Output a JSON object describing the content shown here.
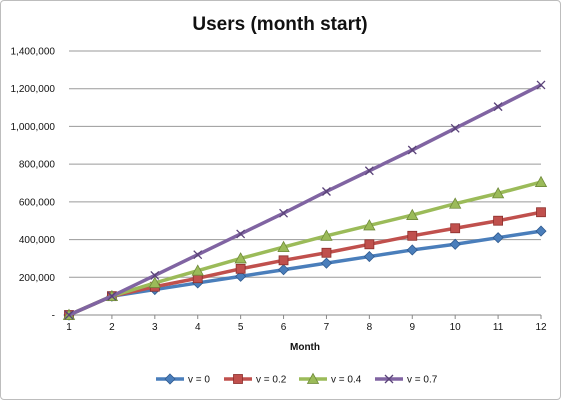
{
  "chart_data": {
    "type": "line",
    "title": "Users (month start)",
    "xlabel": "Month",
    "ylabel": "",
    "x": [
      1,
      2,
      3,
      4,
      5,
      6,
      7,
      8,
      9,
      10,
      11,
      12
    ],
    "ylim": [
      0,
      1400000
    ],
    "yticks": [
      0,
      200000,
      400000,
      600000,
      800000,
      1000000,
      1200000,
      1400000
    ],
    "ytick_labels": [
      "-",
      "200,000",
      "400,000",
      "600,000",
      "800,000",
      "1,000,000",
      "1,200,000",
      "1,400,000"
    ],
    "grid": "horizontal",
    "legend": "bottom",
    "series": [
      {
        "name": "v = 0",
        "color": "#4a7ebb",
        "marker": "diamond",
        "values": [
          0,
          100000,
          135000,
          170000,
          205000,
          240000,
          275000,
          310000,
          345000,
          375000,
          410000,
          445000
        ]
      },
      {
        "name": "v = 0.2",
        "color": "#c0504d",
        "marker": "square",
        "values": [
          0,
          100000,
          150000,
          195000,
          245000,
          290000,
          330000,
          375000,
          420000,
          460000,
          500000,
          545000
        ]
      },
      {
        "name": "v = 0.4",
        "color": "#9bbb59",
        "marker": "triangle",
        "values": [
          0,
          100000,
          170000,
          235000,
          300000,
          360000,
          420000,
          475000,
          530000,
          590000,
          645000,
          705000
        ]
      },
      {
        "name": "v = 0.7",
        "color": "#8064a2",
        "marker": "x",
        "values": [
          0,
          100000,
          210000,
          320000,
          430000,
          540000,
          655000,
          765000,
          875000,
          990000,
          1105000,
          1220000
        ]
      }
    ]
  }
}
